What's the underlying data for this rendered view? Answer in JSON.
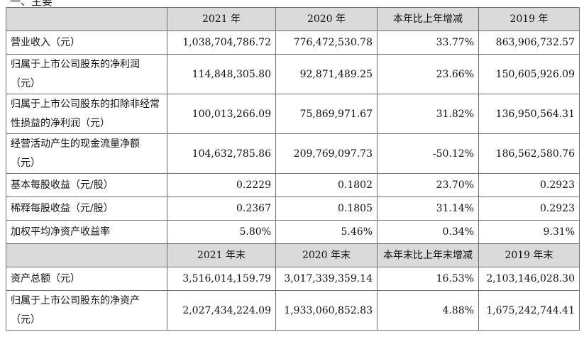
{
  "cropped_heading": "一、主要",
  "headers_period": [
    "",
    "2021 年",
    "2020 年",
    "本年比上年增减",
    "2019 年"
  ],
  "rows_period": [
    {
      "label": "营业收入（元）",
      "v2021": "1,038,704,786.72",
      "v2020": "776,472,530.78",
      "change": "33.77%",
      "v2019": "863,906,732.57"
    },
    {
      "label": "归属于上市公司股东的净利润（元）",
      "v2021": "114,848,305.80",
      "v2020": "92,871,489.25",
      "change": "23.66%",
      "v2019": "150,605,926.09"
    },
    {
      "label": "归属于上市公司股东的扣除非经常性损益的净利润（元）",
      "v2021": "100,013,266.09",
      "v2020": "75,869,971.67",
      "change": "31.82%",
      "v2019": "136,950,564.31"
    },
    {
      "label": "经营活动产生的现金流量净额（元）",
      "v2021": "104,632,785.86",
      "v2020": "209,769,097.73",
      "change": "-50.12%",
      "v2019": "186,562,580.76"
    },
    {
      "label": "基本每股收益（元/股）",
      "v2021": "0.2229",
      "v2020": "0.1802",
      "change": "23.70%",
      "v2019": "0.2923"
    },
    {
      "label": "稀释每股收益（元/股）",
      "v2021": "0.2367",
      "v2020": "0.1805",
      "change": "31.14%",
      "v2019": "0.2923"
    },
    {
      "label": "加权平均净资产收益率",
      "v2021": "5.80%",
      "v2020": "5.46%",
      "change": "0.34%",
      "v2019": "9.31%"
    }
  ],
  "headers_end": [
    "",
    "2021 年末",
    "2020 年末",
    "本年末比上年末增减",
    "2019 年末"
  ],
  "rows_end": [
    {
      "label": "资产总额（元）",
      "v2021": "3,516,014,159.79",
      "v2020": "3,017,339,359.14",
      "change": "16.53%",
      "v2019": "2,103,146,028.30"
    },
    {
      "label": "归属于上市公司股东的净资产（元）",
      "v2021": "2,027,434,224.09",
      "v2020": "1,933,060,852.83",
      "change": "4.88%",
      "v2019": "1,675,242,744.41"
    }
  ]
}
